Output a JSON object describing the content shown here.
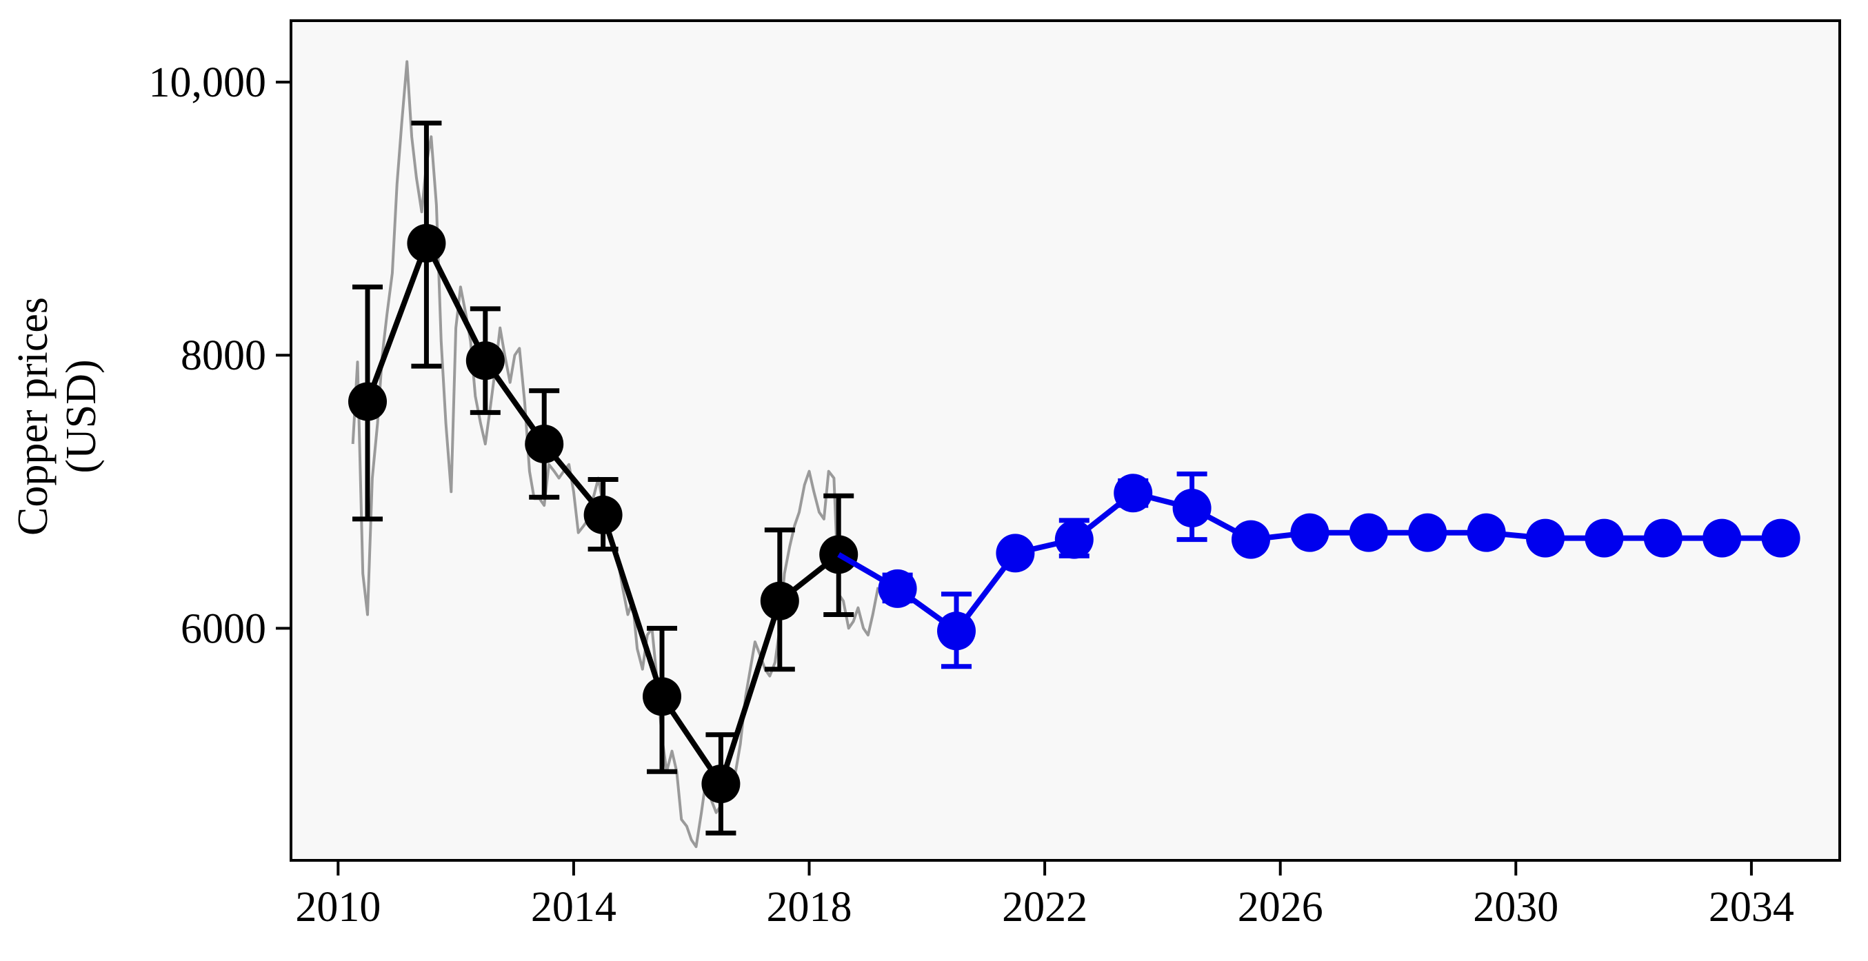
{
  "chart_data": {
    "type": "line",
    "title": "",
    "ylabel": [
      "Copper prices",
      "(USD)"
    ],
    "xlabel": "",
    "xlim": [
      2009.2,
      2035.5
    ],
    "ylim": [
      4300,
      10450
    ],
    "x_ticks": [
      2010,
      2014,
      2018,
      2022,
      2026,
      2030,
      2034
    ],
    "y_ticks": [
      6000,
      8000,
      10000
    ],
    "y_tick_labels": [
      "6000",
      "8000",
      "10,000"
    ],
    "grid": false,
    "legend": "none",
    "colors": {
      "background": "#f8f8f8",
      "monthly": "#9a9a9a",
      "historical": "#000000",
      "forecast": "#0000ee",
      "frame": "#000000"
    },
    "series": [
      {
        "key": "historical",
        "marker": "circle",
        "points": [
          {
            "x": 2010.5,
            "y": 7660,
            "low": 6800,
            "high": 8500
          },
          {
            "x": 2011.5,
            "y": 8820,
            "low": 7920,
            "high": 9700
          },
          {
            "x": 2012.5,
            "y": 7960,
            "low": 7580,
            "high": 8340
          },
          {
            "x": 2013.5,
            "y": 7350,
            "low": 6960,
            "high": 7740
          },
          {
            "x": 2014.5,
            "y": 6830,
            "low": 6580,
            "high": 7090
          },
          {
            "x": 2015.5,
            "y": 5500,
            "low": 4950,
            "high": 6000
          },
          {
            "x": 2016.5,
            "y": 4860,
            "low": 4500,
            "high": 5220
          },
          {
            "x": 2017.5,
            "y": 6200,
            "low": 5700,
            "high": 6720
          },
          {
            "x": 2018.5,
            "y": 6540,
            "low": 6100,
            "high": 6970
          }
        ]
      },
      {
        "key": "forecast",
        "marker": "circle",
        "points": [
          {
            "x": 2019.5,
            "y": 6290,
            "low": 6200,
            "high": 6390
          },
          {
            "x": 2020.5,
            "y": 5980,
            "low": 5720,
            "high": 6250
          },
          {
            "x": 2021.5,
            "y": 6550
          },
          {
            "x": 2022.5,
            "y": 6650,
            "low": 6530,
            "high": 6790
          },
          {
            "x": 2023.5,
            "y": 6990,
            "low": 6900,
            "high": 7080
          },
          {
            "x": 2024.5,
            "y": 6880,
            "low": 6650,
            "high": 7130
          },
          {
            "x": 2025.5,
            "y": 6650
          },
          {
            "x": 2026.5,
            "y": 6700
          },
          {
            "x": 2027.5,
            "y": 6700
          },
          {
            "x": 2028.5,
            "y": 6700
          },
          {
            "x": 2029.5,
            "y": 6700
          },
          {
            "x": 2030.5,
            "y": 6660
          },
          {
            "x": 2031.5,
            "y": 6660
          },
          {
            "x": 2032.5,
            "y": 6660
          },
          {
            "x": 2033.5,
            "y": 6660
          },
          {
            "x": 2034.5,
            "y": 6660
          }
        ]
      },
      {
        "key": "monthly",
        "marker": "none",
        "x": [
          2010.25,
          2010.33,
          2010.42,
          2010.5,
          2010.58,
          2010.67,
          2010.75,
          2010.83,
          2010.92,
          2011.0,
          2011.08,
          2011.17,
          2011.25,
          2011.33,
          2011.42,
          2011.5,
          2011.58,
          2011.67,
          2011.75,
          2011.83,
          2011.92,
          2012.0,
          2012.08,
          2012.17,
          2012.25,
          2012.33,
          2012.42,
          2012.5,
          2012.58,
          2012.67,
          2012.75,
          2012.83,
          2012.92,
          2013.0,
          2013.08,
          2013.17,
          2013.25,
          2013.33,
          2013.42,
          2013.5,
          2013.58,
          2013.67,
          2013.75,
          2013.83,
          2013.92,
          2014.0,
          2014.08,
          2014.17,
          2014.25,
          2014.33,
          2014.42,
          2014.5,
          2014.58,
          2014.67,
          2014.75,
          2014.83,
          2014.92,
          2015.0,
          2015.08,
          2015.17,
          2015.25,
          2015.33,
          2015.42,
          2015.5,
          2015.58,
          2015.67,
          2015.75,
          2015.83,
          2015.92,
          2016.0,
          2016.08,
          2016.17,
          2016.25,
          2016.33,
          2016.42,
          2016.5,
          2016.58,
          2016.67,
          2016.75,
          2016.83,
          2016.92,
          2017.0,
          2017.08,
          2017.17,
          2017.25,
          2017.33,
          2017.42,
          2017.5,
          2017.58,
          2017.67,
          2017.75,
          2017.83,
          2017.92,
          2018.0,
          2018.08,
          2018.17,
          2018.25,
          2018.33,
          2018.42,
          2018.5,
          2018.58,
          2018.67,
          2018.75,
          2018.83,
          2018.92,
          2019.0,
          2019.08,
          2019.17
        ],
        "y": [
          7350,
          7950,
          6400,
          6100,
          7100,
          7500,
          8000,
          8300,
          8600,
          9250,
          9700,
          10150,
          9600,
          9300,
          9050,
          9400,
          9600,
          9100,
          8100,
          7500,
          7000,
          8200,
          8500,
          8300,
          8100,
          7700,
          7500,
          7350,
          7600,
          7900,
          8200,
          8000,
          7800,
          8000,
          8050,
          7650,
          7150,
          6950,
          6950,
          6900,
          7200,
          7150,
          7100,
          7150,
          7200,
          7000,
          6700,
          6750,
          6800,
          6950,
          7100,
          6900,
          6700,
          6600,
          6500,
          6300,
          6100,
          6200,
          5850,
          5700,
          5950,
          6000,
          5600,
          5200,
          4950,
          5100,
          4950,
          4600,
          4550,
          4450,
          4400,
          4650,
          4900,
          4750,
          4650,
          4700,
          4850,
          4800,
          4950,
          5150,
          5500,
          5700,
          5900,
          5800,
          5700,
          5650,
          5750,
          6000,
          6400,
          6600,
          6750,
          6850,
          7050,
          7150,
          7000,
          6850,
          6800,
          7150,
          7100,
          6250,
          6200,
          6000,
          6050,
          6150,
          6000,
          5950,
          6100,
          6300
        ]
      }
    ]
  }
}
